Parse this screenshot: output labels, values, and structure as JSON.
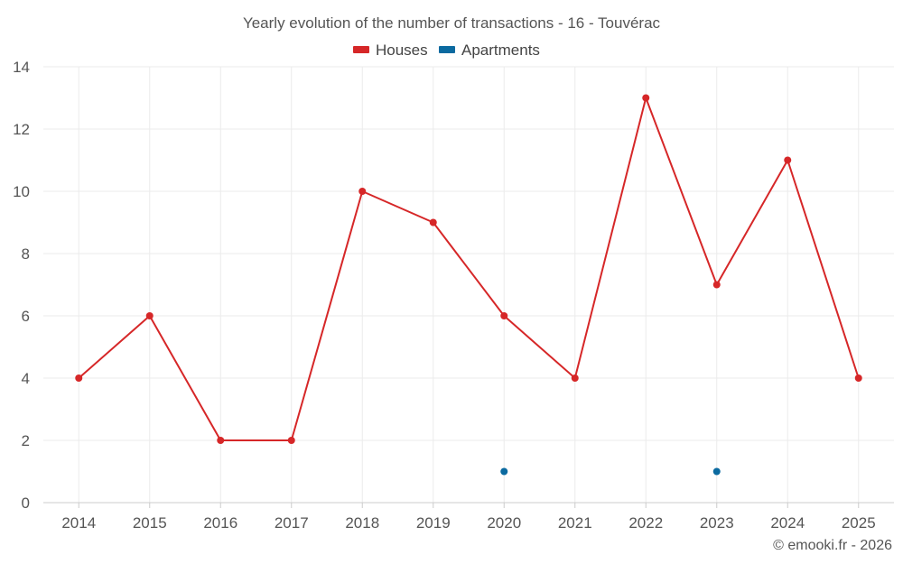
{
  "chart_data": {
    "type": "line",
    "title": "Yearly evolution of the number of transactions - 16 - Touvérac",
    "categories": [
      "2014",
      "2015",
      "2016",
      "2017",
      "2018",
      "2019",
      "2020",
      "2021",
      "2022",
      "2023",
      "2024",
      "2025"
    ],
    "series": [
      {
        "name": "Houses",
        "color": "#d62728",
        "values": [
          4,
          6,
          2,
          2,
          10,
          9,
          6,
          4,
          13,
          7,
          11,
          4
        ]
      },
      {
        "name": "Apartments",
        "color": "#0b6aa0",
        "values": [
          null,
          null,
          null,
          null,
          null,
          null,
          1,
          null,
          null,
          1,
          null,
          null
        ]
      }
    ],
    "ylim": [
      0,
      14
    ],
    "yticks": [
      0,
      2,
      4,
      6,
      8,
      10,
      12,
      14
    ],
    "grid": true,
    "legend_position": "top-center",
    "xlabel": "",
    "ylabel": ""
  },
  "credit": "© emooki.fr - 2026"
}
